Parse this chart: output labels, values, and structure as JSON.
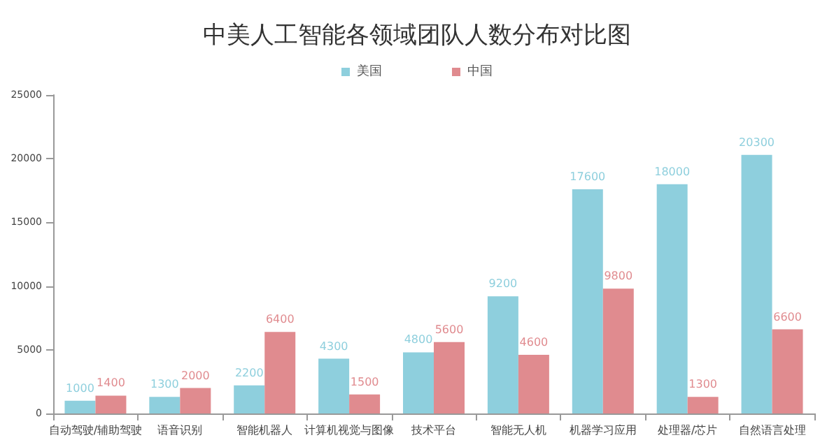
{
  "chart_data": {
    "type": "bar",
    "title": "中美人工智能各领域团队人数分布对比图",
    "categories": [
      "自动驾驶/辅助驾驶",
      "语音识别",
      "智能机器人",
      "计算机视觉与图像",
      "技术平台",
      "智能无人机",
      "机器学习应用",
      "处理器/芯片",
      "自然语言处理"
    ],
    "series": [
      {
        "name": "美国",
        "color": "#8ecfdd",
        "values": [
          1000,
          1300,
          2200,
          4300,
          4800,
          9200,
          17600,
          18000,
          20300
        ]
      },
      {
        "name": "中国",
        "color": "#e08b8f",
        "values": [
          1400,
          2000,
          6400,
          1500,
          5600,
          4600,
          9800,
          1300,
          6600
        ]
      }
    ],
    "ylim": [
      0,
      25000
    ],
    "yticks": [
      0,
      5000,
      10000,
      15000,
      20000,
      25000
    ],
    "grid": false,
    "legend": "top",
    "data_labels": true
  }
}
